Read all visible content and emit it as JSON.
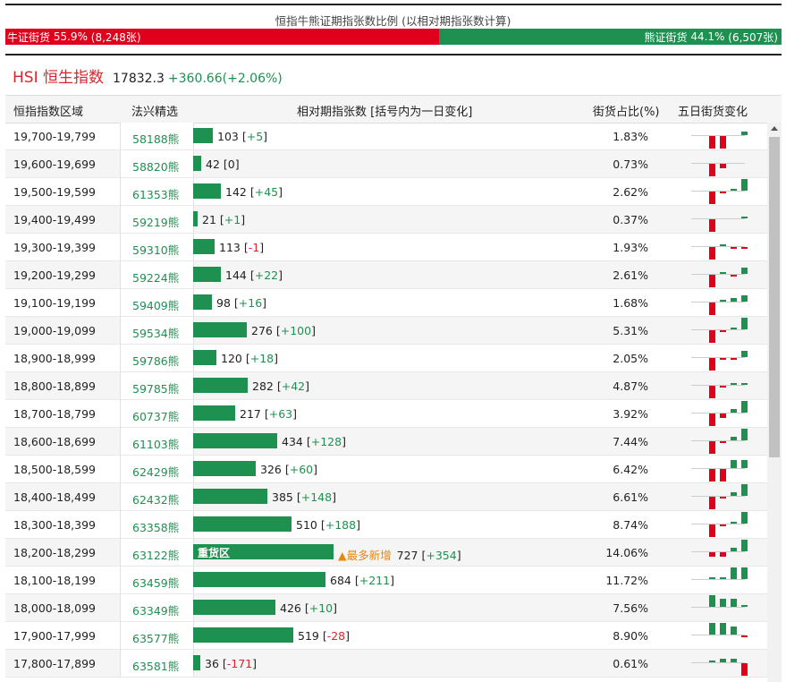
{
  "ratio": {
    "title": "恒指牛熊证期指张数比例 (以相对期指张数计算)",
    "bull_label": "牛证街货",
    "bull_pct": "55.9%",
    "bull_count": "(8,248张)",
    "bull_fraction": 0.559,
    "bear_label": "熊证街货",
    "bear_pct": "44.1%",
    "bear_count": "(6,507张)",
    "colors": {
      "bull": "#e0001b",
      "bear": "#1e9150"
    }
  },
  "index": {
    "name": "HSI 恒生指数",
    "value": "17832.3",
    "change": "+360.66(+2.06%)"
  },
  "table": {
    "headers": {
      "range": "恒指指数区域",
      "pick": "法兴精选",
      "contracts": "相对期指张数 [括号内为一日变化]",
      "share": "街货占比(%)",
      "five_day": "五日街货变化"
    },
    "max_contracts": 727,
    "heavy_label": "重货区",
    "new_label": "▲最多新增",
    "rows": [
      {
        "range": "19,700-19,799",
        "bear": "58188熊",
        "contracts": "103",
        "change": "+5",
        "pct": "1.83%",
        "spark": [
          0,
          -3,
          -3,
          0,
          1
        ]
      },
      {
        "range": "19,600-19,699",
        "bear": "58820熊",
        "contracts": "42",
        "change": "0",
        "pct": "0.73%",
        "spark": [
          0,
          -3,
          -1,
          0,
          0
        ]
      },
      {
        "range": "19,500-19,599",
        "bear": "61353熊",
        "contracts": "142",
        "change": "+45",
        "pct": "2.62%",
        "spark": [
          0,
          -3,
          -0.5,
          0.5,
          3
        ]
      },
      {
        "range": "19,400-19,499",
        "bear": "59219熊",
        "contracts": "21",
        "change": "+1",
        "pct": "0.37%",
        "spark": [
          0,
          -3,
          0,
          0,
          0.5
        ]
      },
      {
        "range": "19,300-19,399",
        "bear": "59310熊",
        "contracts": "113",
        "change": "-1",
        "pct": "1.93%",
        "spark": [
          0,
          -3,
          0.5,
          -0.5,
          -0.5
        ]
      },
      {
        "range": "19,200-19,299",
        "bear": "59224熊",
        "contracts": "144",
        "change": "+22",
        "pct": "2.61%",
        "spark": [
          0,
          -3,
          0.5,
          -0.5,
          1.5
        ]
      },
      {
        "range": "19,100-19,199",
        "bear": "59409熊",
        "contracts": "98",
        "change": "+16",
        "pct": "1.68%",
        "spark": [
          0,
          -3,
          0.5,
          1,
          1.5
        ]
      },
      {
        "range": "19,000-19,099",
        "bear": "59534熊",
        "contracts": "276",
        "change": "+100",
        "pct": "5.31%",
        "spark": [
          0,
          -3,
          -0.5,
          0.5,
          3
        ]
      },
      {
        "range": "18,900-18,999",
        "bear": "59786熊",
        "contracts": "120",
        "change": "+18",
        "pct": "2.05%",
        "spark": [
          0,
          -3,
          -0.5,
          -0.5,
          1.5
        ]
      },
      {
        "range": "18,800-18,899",
        "bear": "59785熊",
        "contracts": "282",
        "change": "+42",
        "pct": "4.87%",
        "spark": [
          0,
          -3,
          -0.5,
          0.5,
          0.5
        ]
      },
      {
        "range": "18,700-18,799",
        "bear": "60737熊",
        "contracts": "217",
        "change": "+63",
        "pct": "3.92%",
        "spark": [
          0,
          -3,
          -1,
          1,
          3
        ]
      },
      {
        "range": "18,600-18,699",
        "bear": "61103熊",
        "contracts": "434",
        "change": "+128",
        "pct": "7.44%",
        "spark": [
          0,
          -3,
          -0.5,
          1,
          3
        ]
      },
      {
        "range": "18,500-18,599",
        "bear": "62429熊",
        "contracts": "326",
        "change": "+60",
        "pct": "6.42%",
        "spark": [
          0,
          -3,
          -3,
          2,
          2
        ]
      },
      {
        "range": "18,400-18,499",
        "bear": "62432熊",
        "contracts": "385",
        "change": "+148",
        "pct": "6.61%",
        "spark": [
          0,
          -3,
          -0.5,
          1,
          3
        ]
      },
      {
        "range": "18,300-18,399",
        "bear": "63358熊",
        "contracts": "510",
        "change": "+188",
        "pct": "8.74%",
        "spark": [
          0,
          -3,
          -0.5,
          0.5,
          3
        ]
      },
      {
        "range": "18,200-18,299",
        "bear": "63122熊",
        "contracts": "727",
        "change": "+354",
        "pct": "14.06%",
        "heavy": true,
        "new": true,
        "spark": [
          0,
          -1,
          -1,
          1,
          3
        ]
      },
      {
        "range": "18,100-18,199",
        "bear": "63459熊",
        "contracts": "684",
        "change": "+211",
        "pct": "11.72%",
        "spark": [
          0,
          0.5,
          0.5,
          3,
          3
        ]
      },
      {
        "range": "18,000-18,099",
        "bear": "63349熊",
        "contracts": "426",
        "change": "+10",
        "pct": "7.56%",
        "spark": [
          0,
          3,
          2,
          2,
          0.5
        ]
      },
      {
        "range": "17,900-17,999",
        "bear": "63577熊",
        "contracts": "519",
        "change": "-28",
        "pct": "8.90%",
        "spark": [
          0,
          3,
          3,
          2,
          -0.5
        ]
      },
      {
        "range": "17,800-17,899",
        "bear": "63581熊",
        "contracts": "36",
        "change": "-171",
        "pct": "0.61%",
        "spark": [
          0,
          0.5,
          1,
          1,
          -3
        ]
      }
    ]
  }
}
